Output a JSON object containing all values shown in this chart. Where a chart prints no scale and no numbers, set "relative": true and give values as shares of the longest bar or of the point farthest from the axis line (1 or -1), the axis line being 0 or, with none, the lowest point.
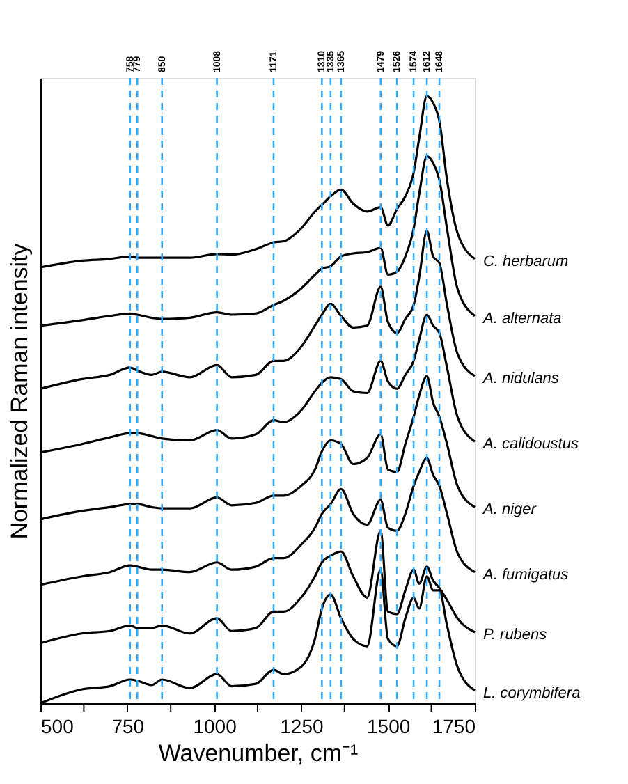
{
  "chart_data": {
    "type": "line",
    "relative": true,
    "xlabel": "Wavenumber, cm⁻¹",
    "ylabel": "Normalized Raman intensity",
    "x": [
      500,
      620,
      700,
      758,
      779,
      820,
      850,
      930,
      1008,
      1050,
      1120,
      1171,
      1200,
      1250,
      1290,
      1310,
      1335,
      1365,
      1400,
      1440,
      1479,
      1500,
      1526,
      1550,
      1574,
      1590,
      1612,
      1630,
      1648,
      1670,
      1700,
      1750
    ],
    "xlim": [
      500,
      1750
    ],
    "xticks": [
      500,
      {
        "value": 625,
        "label": null
      },
      750,
      {
        "value": 875,
        "label": null
      },
      1000,
      {
        "value": 1125,
        "label": null
      },
      1250,
      {
        "value": 1375,
        "label": null
      },
      1500,
      {
        "value": 1625,
        "label": null
      },
      1750
    ],
    "grid": false,
    "series": [
      {
        "name": "C. herbarum",
        "color": "#000000",
        "values": [
          0.718,
          0.729,
          0.732,
          0.736,
          0.734,
          0.734,
          0.734,
          0.734,
          0.74,
          0.739,
          0.748,
          0.759,
          0.761,
          0.782,
          0.81,
          0.821,
          0.835,
          0.846,
          0.823,
          0.81,
          0.817,
          0.787,
          0.814,
          0.835,
          0.874,
          0.931,
          1.0,
          0.989,
          0.959,
          0.862,
          0.775,
          0.732
        ]
      },
      {
        "name": "A. alternata",
        "color": "#000000",
        "values": [
          0.622,
          0.631,
          0.638,
          0.642,
          0.64,
          0.635,
          0.633,
          0.635,
          0.644,
          0.64,
          0.642,
          0.656,
          0.663,
          0.683,
          0.706,
          0.716,
          0.72,
          0.736,
          0.741,
          0.743,
          0.75,
          0.706,
          0.711,
          0.736,
          0.782,
          0.839,
          0.901,
          0.89,
          0.862,
          0.782,
          0.683,
          0.638
        ]
      },
      {
        "name": "A. nidulans",
        "color": "#000000",
        "values": [
          0.518,
          0.534,
          0.541,
          0.553,
          0.548,
          0.541,
          0.546,
          0.537,
          0.557,
          0.537,
          0.541,
          0.564,
          0.564,
          0.587,
          0.622,
          0.64,
          0.658,
          0.638,
          0.619,
          0.622,
          0.686,
          0.628,
          0.61,
          0.633,
          0.656,
          0.702,
          0.778,
          0.736,
          0.725,
          0.656,
          0.576,
          0.539
        ]
      },
      {
        "name": "A. calidoustus",
        "color": "#000000",
        "values": [
          0.413,
          0.427,
          0.438,
          0.445,
          0.445,
          0.44,
          0.436,
          0.433,
          0.45,
          0.436,
          0.443,
          0.466,
          0.463,
          0.482,
          0.514,
          0.528,
          0.537,
          0.534,
          0.514,
          0.511,
          0.564,
          0.53,
          0.518,
          0.541,
          0.564,
          0.599,
          0.64,
          0.622,
          0.61,
          0.553,
          0.472,
          0.431
        ]
      },
      {
        "name": "A. niger",
        "color": "#000000",
        "values": [
          0.303,
          0.317,
          0.323,
          0.328,
          0.328,
          0.323,
          0.321,
          0.321,
          0.339,
          0.326,
          0.33,
          0.342,
          0.342,
          0.358,
          0.385,
          0.415,
          0.433,
          0.427,
          0.394,
          0.404,
          0.443,
          0.385,
          0.381,
          0.427,
          0.472,
          0.507,
          0.539,
          0.495,
          0.472,
          0.427,
          0.358,
          0.323
        ]
      },
      {
        "name": "A. fumigatus",
        "color": "#000000",
        "values": [
          0.195,
          0.209,
          0.216,
          0.227,
          0.225,
          0.22,
          0.22,
          0.216,
          0.232,
          0.22,
          0.225,
          0.239,
          0.239,
          0.261,
          0.289,
          0.312,
          0.328,
          0.353,
          0.312,
          0.294,
          0.335,
          0.289,
          0.284,
          0.312,
          0.358,
          0.381,
          0.404,
          0.376,
          0.358,
          0.312,
          0.248,
          0.216
        ]
      },
      {
        "name": "P. rubens",
        "color": "#000000",
        "values": [
          0.099,
          0.115,
          0.119,
          0.128,
          0.124,
          0.124,
          0.128,
          0.115,
          0.14,
          0.119,
          0.124,
          0.151,
          0.151,
          0.174,
          0.209,
          0.232,
          0.243,
          0.25,
          0.209,
          0.174,
          0.284,
          0.151,
          0.147,
          0.186,
          0.22,
          0.197,
          0.225,
          0.202,
          0.19,
          0.17,
          0.14,
          0.117
        ]
      },
      {
        "name": "L. corymbifera",
        "color": "#000000",
        "values": [
          0.0,
          0.023,
          0.028,
          0.039,
          0.037,
          0.03,
          0.039,
          0.025,
          0.048,
          0.028,
          0.032,
          0.055,
          0.048,
          0.06,
          0.106,
          0.156,
          0.179,
          0.14,
          0.106,
          0.094,
          0.22,
          0.106,
          0.094,
          0.14,
          0.174,
          0.156,
          0.209,
          0.186,
          0.186,
          0.128,
          0.06,
          0.021
        ]
      }
    ],
    "ref_lines": [
      {
        "axis": "x",
        "value": 758,
        "label": "758",
        "color": "#33aaff",
        "line_style": "dashed"
      },
      {
        "axis": "x",
        "value": 779,
        "label": "779",
        "color": "#33aaff",
        "line_style": "dashed"
      },
      {
        "axis": "x",
        "value": 850,
        "label": "850",
        "color": "#33aaff",
        "line_style": "dashed"
      },
      {
        "axis": "x",
        "value": 1008,
        "label": "1008",
        "color": "#33aaff",
        "line_style": "dashed"
      },
      {
        "axis": "x",
        "value": 1171,
        "label": "1171",
        "color": "#33aaff",
        "line_style": "dashed"
      },
      {
        "axis": "x",
        "value": 1310,
        "label": "1310",
        "color": "#33aaff",
        "line_style": "dashed"
      },
      {
        "axis": "x",
        "value": 1335,
        "label": "1335",
        "color": "#33aaff",
        "line_style": "dashed"
      },
      {
        "axis": "x",
        "value": 1365,
        "label": "1365",
        "color": "#33aaff",
        "line_style": "dashed"
      },
      {
        "axis": "x",
        "value": 1479,
        "label": "1479",
        "color": "#33aaff",
        "line_style": "dashed"
      },
      {
        "axis": "x",
        "value": 1526,
        "label": "1526",
        "color": "#33aaff",
        "line_style": "dashed"
      },
      {
        "axis": "x",
        "value": 1574,
        "label": "1574",
        "color": "#33aaff",
        "line_style": "dashed"
      },
      {
        "axis": "x",
        "value": 1612,
        "label": "1612",
        "color": "#33aaff",
        "line_style": "dashed"
      },
      {
        "axis": "x",
        "value": 1648,
        "label": "1648",
        "color": "#33aaff",
        "line_style": "dashed"
      }
    ]
  }
}
